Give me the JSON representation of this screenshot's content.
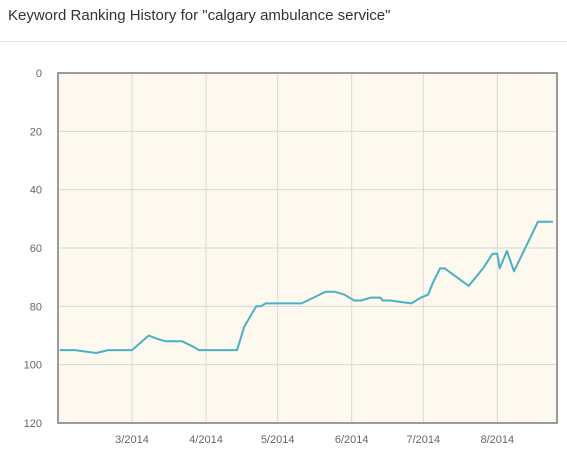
{
  "header": {
    "title": "Keyword Ranking History for \"calgary ambulance service\""
  },
  "chart_data": {
    "type": "line",
    "title": "Keyword Ranking History for \"calgary ambulance service\"",
    "xlabel": "",
    "ylabel": "",
    "y_reversed": true,
    "ylim": [
      0,
      120
    ],
    "y_ticks": [
      0,
      20,
      40,
      60,
      80,
      100,
      120
    ],
    "x_ticks": [
      "3/2014",
      "4/2014",
      "5/2014",
      "6/2014",
      "7/2014",
      "8/2014"
    ],
    "xlim": [
      "2014-01-29",
      "2014-08-26"
    ],
    "grid": true,
    "colors": {
      "line": "#4ab1c4",
      "plot_bg": "#fdf9ef",
      "grid": "#d8d8d8",
      "frame": "#7a7a7a"
    },
    "series": [
      {
        "x": [
          "2014-01-30",
          "2014-02-05",
          "2014-02-14",
          "2014-02-19",
          "2014-03-01",
          "2014-03-08",
          "2014-03-11",
          "2014-03-15",
          "2014-03-22",
          "2014-03-27",
          "2014-03-29",
          "2014-04-01",
          "2014-04-05",
          "2014-04-14",
          "2014-04-17",
          "2014-04-22",
          "2014-04-24",
          "2014-04-26",
          "2014-05-11",
          "2014-05-16",
          "2014-05-21",
          "2014-05-25",
          "2014-05-29",
          "2014-06-02",
          "2014-06-05",
          "2014-06-09",
          "2014-06-13",
          "2014-06-14",
          "2014-06-17",
          "2014-06-26",
          "2014-06-30",
          "2014-07-03",
          "2014-07-05",
          "2014-07-08",
          "2014-07-10",
          "2014-07-20",
          "2014-07-26",
          "2014-07-30",
          "2014-08-01",
          "2014-08-02",
          "2014-08-05",
          "2014-08-08",
          "2014-08-18",
          "2014-08-24"
        ],
        "values": [
          95,
          95,
          96,
          95,
          95,
          90,
          91,
          92,
          92,
          94,
          95,
          95,
          95,
          95,
          87,
          80,
          80,
          79,
          79,
          77,
          75,
          75,
          76,
          78,
          78,
          77,
          77,
          78,
          78,
          79,
          77,
          76,
          72,
          67,
          67,
          73,
          67,
          62,
          62,
          67,
          61,
          68,
          51,
          51
        ]
      }
    ]
  }
}
